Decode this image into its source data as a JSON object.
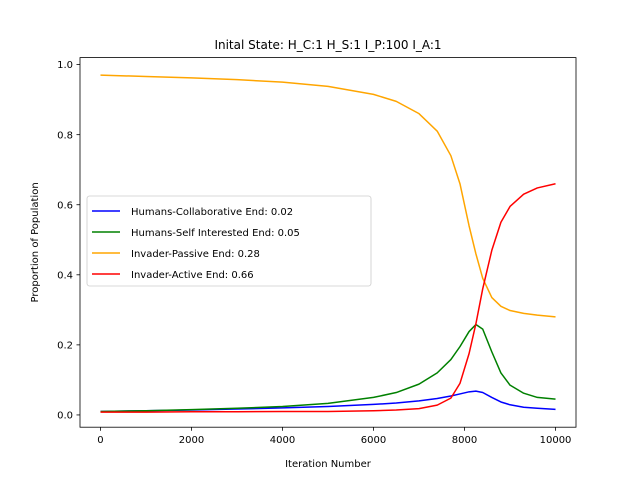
{
  "chart_data": {
    "type": "line",
    "title": "Inital State: H_C:1 H_S:1 I_P:100 I_A:1",
    "xlabel": "Iteration Number",
    "ylabel": "Proportion of Population",
    "xlim": [
      -450,
      10450
    ],
    "ylim": [
      -0.035,
      1.02
    ],
    "xticks": [
      0,
      2000,
      4000,
      6000,
      8000,
      10000
    ],
    "xtick_labels": [
      "0",
      "2000",
      "4000",
      "6000",
      "8000",
      "10000"
    ],
    "yticks": [
      0.0,
      0.2,
      0.4,
      0.6,
      0.8,
      1.0
    ],
    "ytick_labels": [
      "0.0",
      "0.2",
      "0.4",
      "0.6",
      "0.8",
      "1.0"
    ],
    "grid": false,
    "legend_position": "center-left",
    "x": [
      0,
      1000,
      2000,
      3000,
      4000,
      5000,
      6000,
      6500,
      7000,
      7400,
      7700,
      7900,
      8100,
      8250,
      8400,
      8600,
      8800,
      9000,
      9300,
      9600,
      10000
    ],
    "series": [
      {
        "name": "Humans-Collaborative End: 0.02",
        "color": "#0000ff",
        "values": [
          0.01,
          0.012,
          0.014,
          0.017,
          0.02,
          0.024,
          0.03,
          0.034,
          0.04,
          0.047,
          0.054,
          0.06,
          0.066,
          0.068,
          0.064,
          0.05,
          0.037,
          0.029,
          0.022,
          0.019,
          0.016
        ]
      },
      {
        "name": "Humans-Self Interested End: 0.05",
        "color": "#008000",
        "values": [
          0.01,
          0.012,
          0.015,
          0.019,
          0.024,
          0.033,
          0.05,
          0.064,
          0.088,
          0.12,
          0.158,
          0.195,
          0.238,
          0.258,
          0.245,
          0.18,
          0.12,
          0.085,
          0.062,
          0.05,
          0.045
        ]
      },
      {
        "name": "Invader-Passive End: 0.28",
        "color": "#ffa500",
        "values": [
          0.97,
          0.966,
          0.962,
          0.957,
          0.95,
          0.938,
          0.915,
          0.895,
          0.86,
          0.81,
          0.74,
          0.66,
          0.54,
          0.46,
          0.39,
          0.335,
          0.31,
          0.298,
          0.29,
          0.285,
          0.28
        ]
      },
      {
        "name": "Invader-Active End: 0.66",
        "color": "#ff0000",
        "values": [
          0.008,
          0.008,
          0.009,
          0.009,
          0.01,
          0.01,
          0.012,
          0.014,
          0.018,
          0.028,
          0.048,
          0.09,
          0.175,
          0.26,
          0.36,
          0.47,
          0.55,
          0.595,
          0.63,
          0.648,
          0.66
        ]
      }
    ]
  }
}
